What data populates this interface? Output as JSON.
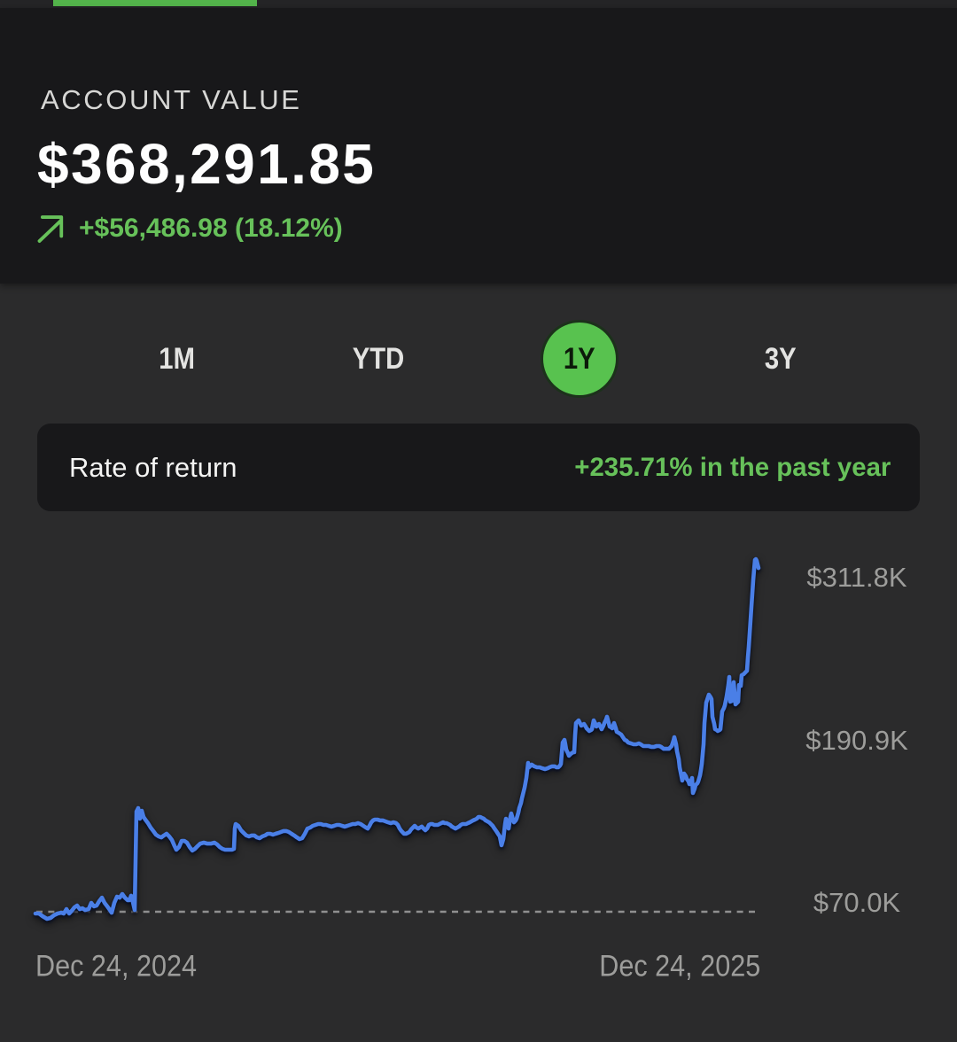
{
  "colors": {
    "page_bg": "#2b2b2c",
    "card_bg": "#18181a",
    "box_bg": "#18181a",
    "topstrip_bg": "#242426",
    "green_bar": "#53b44b",
    "green_text": "#67c15a",
    "tab_active_bg": "#58c24f",
    "tab_active_text": "#0c1a0a",
    "tab_text": "#e3e3e1",
    "value_text": "#fefefe",
    "label_text": "#d7d7d5",
    "axis_text": "#9d9d9b",
    "line_color": "#4a7fe7",
    "dash_color": "#909090"
  },
  "account": {
    "label": "ACCOUNT VALUE",
    "value": "$368,291.85",
    "change": "+$56,486.98 (18.12%)"
  },
  "range_tabs": [
    {
      "label": "1M",
      "active": false
    },
    {
      "label": "YTD",
      "active": false
    },
    {
      "label": "1Y",
      "active": true
    },
    {
      "label": "3Y",
      "active": false
    }
  ],
  "rate_of_return": {
    "label": "Rate of return",
    "value": "+235.71% in the past year"
  },
  "chart_data": {
    "type": "line",
    "title": "Account value, 1Y performance",
    "series_name": "Account value",
    "unit": "USD (thousands)",
    "x_ticks": [
      "Dec 24, 2024",
      "Dec 24, 2025"
    ],
    "y_ticks": [
      {
        "label": "$311.8K",
        "value_k": 311.8
      },
      {
        "label": "$190.9K",
        "value_k": 190.9
      },
      {
        "label": "$70.0K",
        "value_k": 70.0
      }
    ],
    "baseline_k": 70.0,
    "ylim_k": [
      55,
      340
    ],
    "grid": "dashed baseline only",
    "legend": "none",
    "points": [
      [
        0.0,
        68.7
      ],
      [
        0.0049,
        68.7
      ],
      [
        0.0098,
        66.7
      ],
      [
        0.0159,
        64.7
      ],
      [
        0.0208,
        65.4
      ],
      [
        0.0257,
        67.4
      ],
      [
        0.0306,
        68.7
      ],
      [
        0.0355,
        69.3
      ],
      [
        0.0392,
        68.7
      ],
      [
        0.0429,
        72.0
      ],
      [
        0.0466,
        68.7
      ],
      [
        0.0502,
        70.7
      ],
      [
        0.0539,
        73.3
      ],
      [
        0.0576,
        74.6
      ],
      [
        0.0613,
        72.0
      ],
      [
        0.065,
        72.6
      ],
      [
        0.0686,
        71.3
      ],
      [
        0.0735,
        72.0
      ],
      [
        0.0772,
        76.6
      ],
      [
        0.0809,
        74.0
      ],
      [
        0.0846,
        74.6
      ],
      [
        0.0882,
        77.9
      ],
      [
        0.0919,
        80.5
      ],
      [
        0.0956,
        76.6
      ],
      [
        0.0993,
        74.0
      ],
      [
        0.1029,
        71.3
      ],
      [
        0.1054,
        69.3
      ],
      [
        0.1091,
        76.6
      ],
      [
        0.1127,
        81.2
      ],
      [
        0.1164,
        80.5
      ],
      [
        0.1201,
        83.2
      ],
      [
        0.1238,
        80.5
      ],
      [
        0.1275,
        78.6
      ],
      [
        0.1299,
        78.6
      ],
      [
        0.1324,
        81.9
      ],
      [
        0.1348,
        77.2
      ],
      [
        0.1373,
        71.3
      ],
      [
        0.1397,
        144.5
      ],
      [
        0.1422,
        147.1
      ],
      [
        0.1446,
        139.2
      ],
      [
        0.1471,
        145.1
      ],
      [
        0.1495,
        140.5
      ],
      [
        0.152,
        138.5
      ],
      [
        0.1556,
        135.9
      ],
      [
        0.1593,
        132.6
      ],
      [
        0.163,
        130.0
      ],
      [
        0.1667,
        127.3
      ],
      [
        0.1703,
        126.0
      ],
      [
        0.174,
        125.3
      ],
      [
        0.1777,
        126.7
      ],
      [
        0.1814,
        128.0
      ],
      [
        0.185,
        126.0
      ],
      [
        0.1887,
        123.4
      ],
      [
        0.1924,
        118.8
      ],
      [
        0.1949,
        116.1
      ],
      [
        0.1985,
        118.1
      ],
      [
        0.2022,
        122.7
      ],
      [
        0.2059,
        122.7
      ],
      [
        0.2096,
        121.4
      ],
      [
        0.2132,
        118.1
      ],
      [
        0.2169,
        115.5
      ],
      [
        0.2206,
        116.8
      ],
      [
        0.2243,
        118.8
      ],
      [
        0.2279,
        120.7
      ],
      [
        0.2328,
        121.4
      ],
      [
        0.2377,
        120.7
      ],
      [
        0.2426,
        120.7
      ],
      [
        0.2475,
        121.4
      ],
      [
        0.2512,
        120.1
      ],
      [
        0.2549,
        118.1
      ],
      [
        0.2586,
        116.8
      ],
      [
        0.2623,
        116.1
      ],
      [
        0.2672,
        116.1
      ],
      [
        0.2721,
        116.1
      ],
      [
        0.2745,
        116.8
      ],
      [
        0.2757,
        131.9
      ],
      [
        0.277,
        135.2
      ],
      [
        0.2806,
        133.9
      ],
      [
        0.2843,
        130.6
      ],
      [
        0.288,
        128.6
      ],
      [
        0.2917,
        126.7
      ],
      [
        0.2953,
        126.0
      ],
      [
        0.299,
        126.7
      ],
      [
        0.3027,
        126.7
      ],
      [
        0.3064,
        125.3
      ],
      [
        0.31,
        124.7
      ],
      [
        0.3137,
        126.0
      ],
      [
        0.3174,
        126.7
      ],
      [
        0.3211,
        128.0
      ],
      [
        0.3248,
        128.0
      ],
      [
        0.3284,
        127.3
      ],
      [
        0.3321,
        128.0
      ],
      [
        0.3358,
        128.6
      ],
      [
        0.3395,
        129.3
      ],
      [
        0.3431,
        130.0
      ],
      [
        0.3468,
        130.0
      ],
      [
        0.3505,
        129.3
      ],
      [
        0.3542,
        128.0
      ],
      [
        0.3578,
        126.7
      ],
      [
        0.3615,
        125.3
      ],
      [
        0.3652,
        124.0
      ],
      [
        0.3689,
        124.7
      ],
      [
        0.3725,
        128.0
      ],
      [
        0.3762,
        131.9
      ],
      [
        0.3799,
        132.6
      ],
      [
        0.3836,
        133.9
      ],
      [
        0.3873,
        134.6
      ],
      [
        0.3909,
        135.2
      ],
      [
        0.3946,
        135.2
      ],
      [
        0.3983,
        134.6
      ],
      [
        0.402,
        134.6
      ],
      [
        0.4056,
        133.9
      ],
      [
        0.4093,
        133.3
      ],
      [
        0.413,
        133.9
      ],
      [
        0.4167,
        134.6
      ],
      [
        0.4203,
        134.6
      ],
      [
        0.424,
        133.9
      ],
      [
        0.4277,
        133.3
      ],
      [
        0.4314,
        133.9
      ],
      [
        0.435,
        134.6
      ],
      [
        0.4387,
        135.2
      ],
      [
        0.4424,
        135.2
      ],
      [
        0.4461,
        135.9
      ],
      [
        0.4498,
        135.2
      ],
      [
        0.4534,
        133.9
      ],
      [
        0.4571,
        132.6
      ],
      [
        0.4596,
        131.9
      ],
      [
        0.462,
        133.9
      ],
      [
        0.4645,
        136.5
      ],
      [
        0.4669,
        137.9
      ],
      [
        0.4694,
        138.5
      ],
      [
        0.473,
        138.5
      ],
      [
        0.4767,
        137.9
      ],
      [
        0.4804,
        137.9
      ],
      [
        0.4841,
        137.2
      ],
      [
        0.4877,
        136.5
      ],
      [
        0.4914,
        135.9
      ],
      [
        0.4951,
        136.5
      ],
      [
        0.4988,
        135.9
      ],
      [
        0.5012,
        134.6
      ],
      [
        0.5037,
        131.9
      ],
      [
        0.5061,
        130.0
      ],
      [
        0.5098,
        128.0
      ],
      [
        0.5123,
        128.0
      ],
      [
        0.5147,
        128.6
      ],
      [
        0.5172,
        129.3
      ],
      [
        0.5196,
        131.3
      ],
      [
        0.5221,
        132.6
      ],
      [
        0.5245,
        133.9
      ],
      [
        0.527,
        132.6
      ],
      [
        0.5294,
        131.9
      ],
      [
        0.5319,
        132.6
      ],
      [
        0.5343,
        133.3
      ],
      [
        0.5368,
        131.9
      ],
      [
        0.5392,
        130.6
      ],
      [
        0.5417,
        131.9
      ],
      [
        0.5441,
        134.6
      ],
      [
        0.5466,
        135.2
      ],
      [
        0.549,
        135.2
      ],
      [
        0.5515,
        134.6
      ],
      [
        0.5539,
        134.6
      ],
      [
        0.5564,
        134.6
      ],
      [
        0.5588,
        135.2
      ],
      [
        0.5613,
        135.9
      ],
      [
        0.5637,
        136.5
      ],
      [
        0.5662,
        135.9
      ],
      [
        0.5686,
        135.9
      ],
      [
        0.5711,
        135.2
      ],
      [
        0.5735,
        134.6
      ],
      [
        0.576,
        133.3
      ],
      [
        0.5784,
        132.6
      ],
      [
        0.5809,
        131.9
      ],
      [
        0.5833,
        132.6
      ],
      [
        0.5858,
        133.3
      ],
      [
        0.5882,
        134.6
      ],
      [
        0.5907,
        135.2
      ],
      [
        0.5931,
        135.2
      ],
      [
        0.5956,
        135.2
      ],
      [
        0.598,
        135.9
      ],
      [
        0.6005,
        136.5
      ],
      [
        0.6029,
        137.2
      ],
      [
        0.6054,
        137.9
      ],
      [
        0.6078,
        138.5
      ],
      [
        0.6103,
        139.2
      ],
      [
        0.6127,
        140.5
      ],
      [
        0.6152,
        140.5
      ],
      [
        0.6176,
        139.8
      ],
      [
        0.6201,
        139.2
      ],
      [
        0.6225,
        137.9
      ],
      [
        0.625,
        137.2
      ],
      [
        0.6275,
        136.5
      ],
      [
        0.6299,
        135.2
      ],
      [
        0.6324,
        133.9
      ],
      [
        0.6348,
        131.9
      ],
      [
        0.6373,
        130.0
      ],
      [
        0.6397,
        128.0
      ],
      [
        0.6422,
        126.0
      ],
      [
        0.6446,
        119.4
      ],
      [
        0.6471,
        124.0
      ],
      [
        0.6495,
        135.2
      ],
      [
        0.6507,
        139.2
      ],
      [
        0.6532,
        134.6
      ],
      [
        0.6544,
        131.9
      ],
      [
        0.6569,
        140.5
      ],
      [
        0.6581,
        143.1
      ],
      [
        0.6605,
        138.5
      ],
      [
        0.6618,
        136.5
      ],
      [
        0.6642,
        137.9
      ],
      [
        0.6654,
        139.2
      ],
      [
        0.6679,
        143.8
      ],
      [
        0.6691,
        147.1
      ],
      [
        0.6716,
        151.0
      ],
      [
        0.6728,
        154.3
      ],
      [
        0.6752,
        159.6
      ],
      [
        0.6765,
        162.2
      ],
      [
        0.6789,
        169.5
      ],
      [
        0.6814,
        180.7
      ],
      [
        0.6826,
        177.4
      ],
      [
        0.685,
        178.7
      ],
      [
        0.6863,
        179.4
      ],
      [
        0.69,
        178.1
      ],
      [
        0.6936,
        177.4
      ],
      [
        0.6973,
        177.4
      ],
      [
        0.701,
        176.7
      ],
      [
        0.7047,
        176.1
      ],
      [
        0.7083,
        176.7
      ],
      [
        0.7108,
        177.4
      ],
      [
        0.7145,
        178.1
      ],
      [
        0.7181,
        178.1
      ],
      [
        0.7206,
        177.4
      ],
      [
        0.723,
        177.4
      ],
      [
        0.7255,
        178.7
      ],
      [
        0.7267,
        180.0
      ],
      [
        0.7279,
        187.9
      ],
      [
        0.7292,
        195.8
      ],
      [
        0.7316,
        197.8
      ],
      [
        0.7328,
        194.5
      ],
      [
        0.7341,
        190.6
      ],
      [
        0.7365,
        187.9
      ],
      [
        0.7377,
        186.0
      ],
      [
        0.7402,
        187.3
      ],
      [
        0.7414,
        187.9
      ],
      [
        0.7439,
        188.6
      ],
      [
        0.7451,
        188.6
      ],
      [
        0.7463,
        201.1
      ],
      [
        0.7475,
        210.3
      ],
      [
        0.7512,
        212.3
      ],
      [
        0.7537,
        209.7
      ],
      [
        0.7549,
        208.4
      ],
      [
        0.7574,
        209.0
      ],
      [
        0.7586,
        209.7
      ],
      [
        0.761,
        207.7
      ],
      [
        0.7623,
        206.4
      ],
      [
        0.7647,
        205.1
      ],
      [
        0.7659,
        204.4
      ],
      [
        0.7684,
        205.1
      ],
      [
        0.7696,
        205.7
      ],
      [
        0.7708,
        209.0
      ],
      [
        0.7721,
        212.3
      ],
      [
        0.7745,
        209.7
      ],
      [
        0.7757,
        207.7
      ],
      [
        0.7782,
        209.0
      ],
      [
        0.7794,
        209.7
      ],
      [
        0.7819,
        207.0
      ],
      [
        0.7831,
        205.7
      ],
      [
        0.7855,
        208.4
      ],
      [
        0.7868,
        210.3
      ],
      [
        0.7892,
        213.0
      ],
      [
        0.7904,
        215.0
      ],
      [
        0.7929,
        210.3
      ],
      [
        0.7941,
        207.7
      ],
      [
        0.7966,
        207.0
      ],
      [
        0.7978,
        206.4
      ],
      [
        0.799,
        208.4
      ],
      [
        0.8002,
        210.3
      ],
      [
        0.8027,
        206.4
      ],
      [
        0.8039,
        203.8
      ],
      [
        0.8064,
        203.1
      ],
      [
        0.81,
        201.8
      ],
      [
        0.8125,
        199.8
      ],
      [
        0.815,
        197.8
      ],
      [
        0.8174,
        197.2
      ],
      [
        0.8199,
        195.8
      ],
      [
        0.8235,
        195.2
      ],
      [
        0.8272,
        194.5
      ],
      [
        0.8309,
        194.5
      ],
      [
        0.8346,
        195.2
      ],
      [
        0.837,
        194.5
      ],
      [
        0.8407,
        193.2
      ],
      [
        0.8444,
        193.2
      ],
      [
        0.848,
        193.2
      ],
      [
        0.8517,
        192.6
      ],
      [
        0.8554,
        192.6
      ],
      [
        0.8591,
        193.2
      ],
      [
        0.8627,
        193.2
      ],
      [
        0.8652,
        192.6
      ],
      [
        0.8689,
        191.2
      ],
      [
        0.8725,
        191.2
      ],
      [
        0.8762,
        191.2
      ],
      [
        0.8787,
        192.6
      ],
      [
        0.8799,
        193.2
      ],
      [
        0.8824,
        197.2
      ],
      [
        0.8836,
        199.8
      ],
      [
        0.886,
        194.5
      ],
      [
        0.8873,
        189.3
      ],
      [
        0.8897,
        183.3
      ],
      [
        0.8909,
        177.4
      ],
      [
        0.8934,
        170.8
      ],
      [
        0.8946,
        167.5
      ],
      [
        0.8958,
        170.2
      ],
      [
        0.8971,
        172.8
      ],
      [
        0.8995,
        170.8
      ],
      [
        0.9007,
        168.8
      ],
      [
        0.9032,
        166.9
      ],
      [
        0.9044,
        164.9
      ],
      [
        0.9069,
        167.5
      ],
      [
        0.9081,
        169.5
      ],
      [
        0.9093,
        158.3
      ],
      [
        0.9118,
        161.6
      ],
      [
        0.913,
        164.2
      ],
      [
        0.9154,
        165.5
      ],
      [
        0.9167,
        166.9
      ],
      [
        0.9191,
        171.5
      ],
      [
        0.9203,
        175.4
      ],
      [
        0.9216,
        180.0
      ],
      [
        0.924,
        194.5
      ],
      [
        0.9252,
        210.3
      ],
      [
        0.9277,
        225.5
      ],
      [
        0.9301,
        229.5
      ],
      [
        0.9314,
        231.4
      ],
      [
        0.9338,
        229.5
      ],
      [
        0.935,
        228.1
      ],
      [
        0.9363,
        215.0
      ],
      [
        0.9387,
        209.7
      ],
      [
        0.94,
        205.7
      ],
      [
        0.9424,
        205.1
      ],
      [
        0.9436,
        204.4
      ],
      [
        0.9461,
        205.1
      ],
      [
        0.9473,
        205.7
      ],
      [
        0.9485,
        212.3
      ],
      [
        0.9498,
        218.9
      ],
      [
        0.9522,
        221.5
      ],
      [
        0.9534,
        223.5
      ],
      [
        0.9547,
        226.8
      ],
      [
        0.9559,
        230.1
      ],
      [
        0.9583,
        238.7
      ],
      [
        0.9596,
        244.6
      ],
      [
        0.9608,
        226.2
      ],
      [
        0.9632,
        226.8
      ],
      [
        0.9645,
        227.5
      ],
      [
        0.9657,
        240.7
      ],
      [
        0.9669,
        232.7
      ],
      [
        0.9681,
        224.2
      ],
      [
        0.9706,
        225.5
      ],
      [
        0.9718,
        226.2
      ],
      [
        0.973,
        238.7
      ],
      [
        0.9743,
        238.0
      ],
      [
        0.9755,
        238.0
      ],
      [
        0.9767,
        245.9
      ],
      [
        0.9792,
        246.6
      ],
      [
        0.9804,
        247.2
      ],
      [
        0.9828,
        248.6
      ],
      [
        0.9841,
        249.2
      ],
      [
        0.9853,
        259.1
      ],
      [
        0.9865,
        267.0
      ],
      [
        0.9877,
        276.9
      ],
      [
        0.989,
        286.8
      ],
      [
        0.9902,
        296.7
      ],
      [
        0.9914,
        306.5
      ],
      [
        0.9926,
        316.4
      ],
      [
        0.9939,
        324.3
      ],
      [
        0.9951,
        331.6
      ],
      [
        0.9963,
        332.2
      ],
      [
        0.9975,
        330.9
      ],
      [
        0.9988,
        328.3
      ],
      [
        1.0,
        325.6
      ]
    ]
  }
}
